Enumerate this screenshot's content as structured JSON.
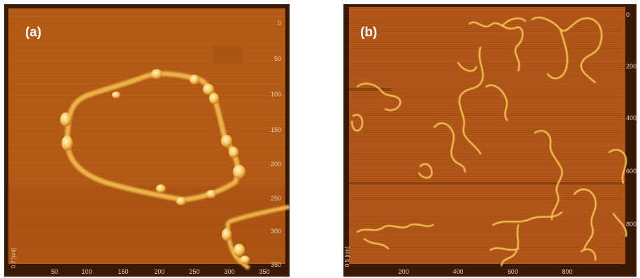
{
  "panels": [
    {
      "label": "(a)",
      "x_ticks": [
        "50",
        "100",
        "150",
        "200",
        "250",
        "300",
        "350"
      ],
      "y_ticks": [
        "0",
        "50",
        "100",
        "150",
        "200",
        "250",
        "300",
        "350"
      ],
      "z_label": "0  7 [nm]"
    },
    {
      "label": "(b)",
      "x_ticks": [
        "200",
        "400",
        "600",
        "800"
      ],
      "y_ticks": [
        "0",
        "200",
        "400",
        "600",
        "800"
      ],
      "z_label": "0  5 [nm]"
    }
  ],
  "colors": {
    "background": "#b25a14",
    "frame": "#3a1a06",
    "strand": "#f2bd55",
    "bead": "#fde9a0"
  }
}
